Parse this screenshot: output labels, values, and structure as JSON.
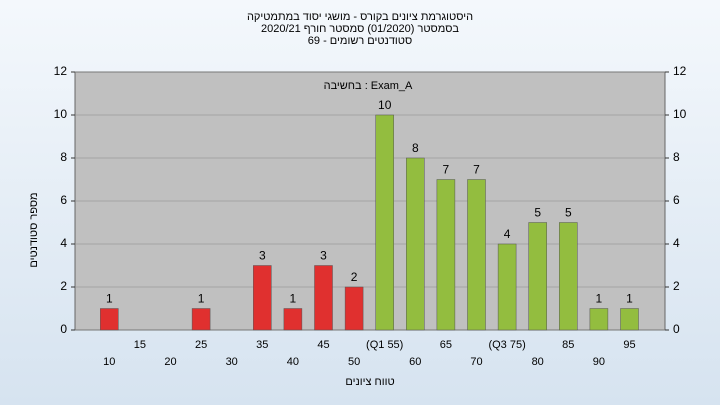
{
  "chart_data": {
    "type": "bar",
    "title": [
      "היסטוגרמת ציונים בקורס - מושגי יסוד במתמטיקה",
      "בסמסטר  (01/2020)  סמסטר חורף 2020/21",
      "סטודנטים רשומים - 69"
    ],
    "annotation": "בחשיבה : Exam_A",
    "x_label": "טווח ציונים",
    "y_label": "מספר סטודנטים",
    "categories": [
      "10",
      "15",
      "20",
      "25",
      "30",
      "35",
      "40",
      "45",
      "50",
      "(Q1 55)",
      "60",
      "65",
      "70",
      "(Q3 75)",
      "80",
      "85",
      "90",
      "95"
    ],
    "values": [
      1,
      0,
      0,
      1,
      0,
      3,
      1,
      3,
      2,
      10,
      8,
      7,
      7,
      4,
      5,
      5,
      1,
      1
    ],
    "colors": [
      "#e0302f",
      "#e0302f",
      "#e0302f",
      "#e0302f",
      "#e0302f",
      "#e0302f",
      "#e0302f",
      "#e0302f",
      "#e0302f",
      "#93bd3f",
      "#93bd3f",
      "#93bd3f",
      "#93bd3f",
      "#93bd3f",
      "#93bd3f",
      "#93bd3f",
      "#93bd3f",
      "#93bd3f"
    ],
    "ylim": [
      0,
      12
    ],
    "yticks": [
      0,
      2,
      4,
      6,
      8,
      10,
      12
    ],
    "grid": true
  }
}
